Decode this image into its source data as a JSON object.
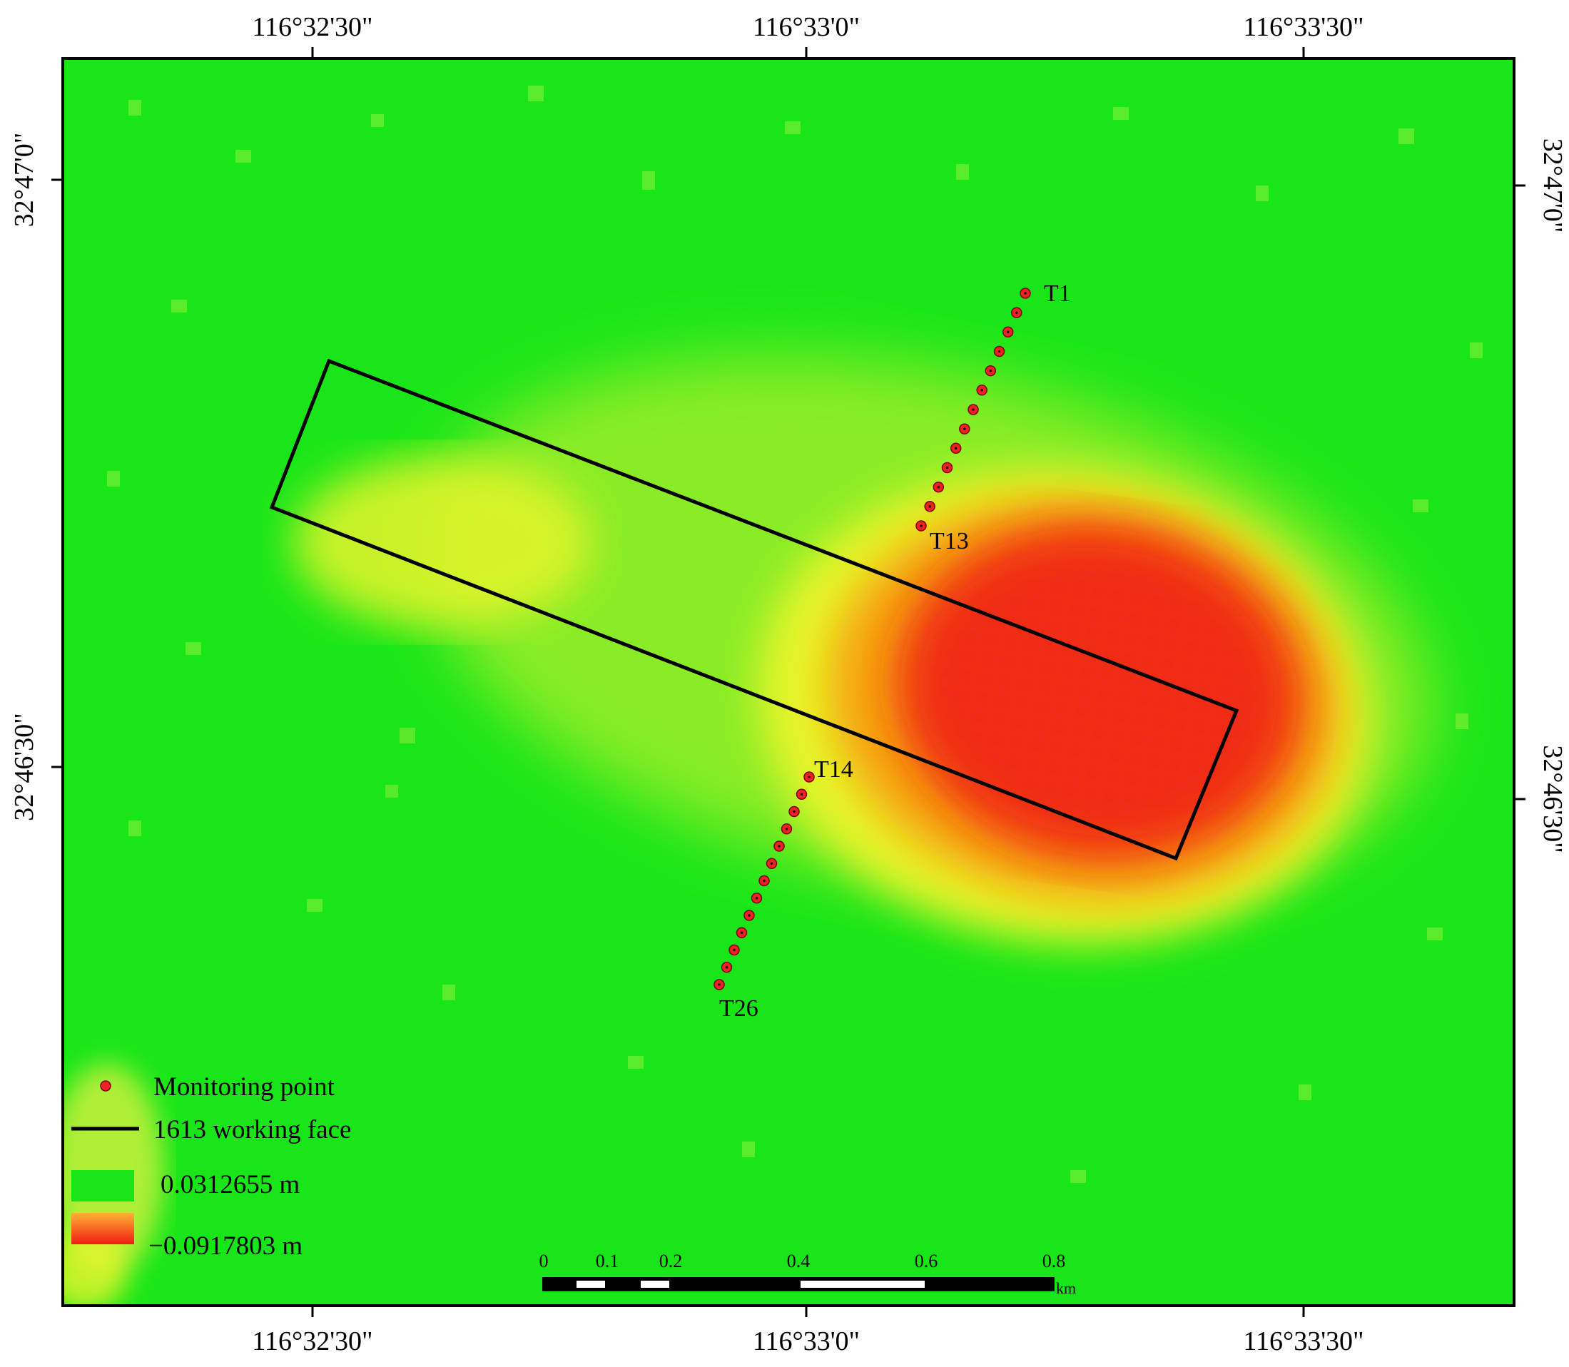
{
  "map": {
    "top_lon_labels": [
      "116°32'30\"",
      "116°33'0\"",
      "116°33'30\""
    ],
    "bottom_lon_labels": [
      "116°32'30\"",
      "116°33'0\"",
      "116°33'30\""
    ],
    "left_lat_labels": [
      "32°47'0\"",
      "32°46'30\""
    ],
    "right_lat_labels": [
      "32°47'0\"",
      "32°46'30\""
    ],
    "point_labels": {
      "first": "T1",
      "north_end": "T13",
      "south_start": "T14",
      "last": "T26"
    },
    "monitoring_point_count": 26
  },
  "legend": {
    "monitoring_point": "Monitoring point",
    "working_face": "1613 working face",
    "max_value": "0.0312655 m",
    "min_value": "−0.0917803 m"
  },
  "scale_bar": {
    "ticks": [
      "0",
      "0.1",
      "0.2",
      "0.4",
      "0.6",
      "0.8"
    ],
    "unit": "km"
  },
  "colors": {
    "background_green": "#19e619",
    "subsidence_yellow": "#e8f52a",
    "subsidence_orange": "#f7a10d",
    "subsidence_red": "#ee1c14",
    "point_red": "#ee2222",
    "frame": "#000000"
  }
}
